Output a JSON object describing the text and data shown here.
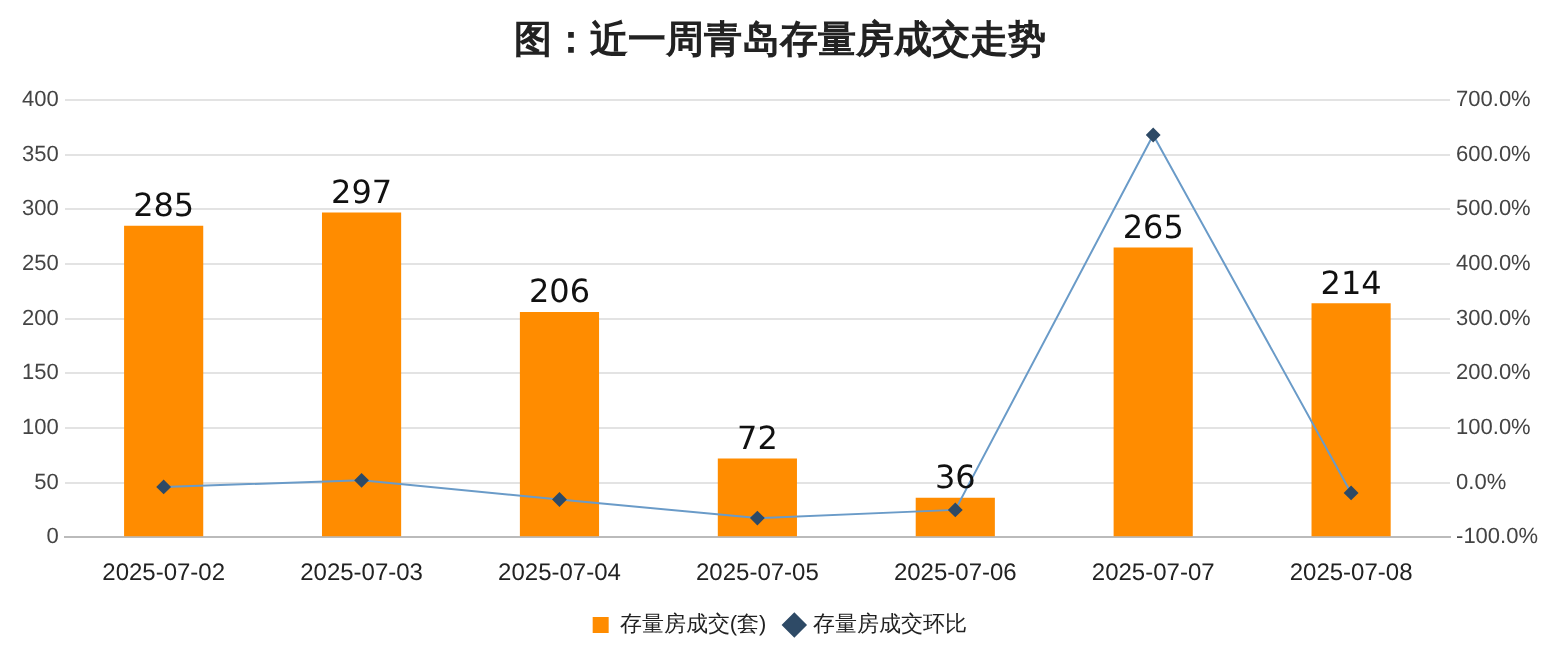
{
  "chart_data": {
    "type": "bar",
    "title": "图：近一周青岛存量房成交走势",
    "categories": [
      "2025-07-02",
      "2025-07-03",
      "2025-07-04",
      "2025-07-05",
      "2025-07-06",
      "2025-07-07",
      "2025-07-08"
    ],
    "series": [
      {
        "name": "存量房成交(套)",
        "color": "#ff8c00",
        "values": [
          285,
          297,
          206,
          72,
          36,
          265,
          214
        ],
        "value_labels": [
          "285",
          "297",
          "206",
          "72",
          "36",
          "265",
          "214"
        ]
      },
      {
        "name": "存量房成交环比",
        "type": "line",
        "axis": "y2",
        "color": "#6a9bc8",
        "marker": "diamond",
        "values": [
          -8,
          4,
          -31,
          -65,
          -50,
          636,
          -19
        ]
      }
    ],
    "ylim": [
      0,
      400
    ],
    "yticks": [
      0,
      50,
      100,
      150,
      200,
      250,
      300,
      350,
      400
    ],
    "y2lim": [
      -100,
      700
    ],
    "y2ticks": [
      {
        "value": -100,
        "label": "-100.0%"
      },
      {
        "value": 0,
        "label": "0.0%"
      },
      {
        "value": 100,
        "label": "100.0%"
      },
      {
        "value": 200,
        "label": "200.0%"
      },
      {
        "value": 300,
        "label": "300.0%"
      },
      {
        "value": 400,
        "label": "400.0%"
      },
      {
        "value": 500,
        "label": "500.0%"
      },
      {
        "value": 600,
        "label": "600.0%"
      },
      {
        "value": 700,
        "label": "700.0%"
      }
    ],
    "grid": "y",
    "legend": "bottom"
  }
}
